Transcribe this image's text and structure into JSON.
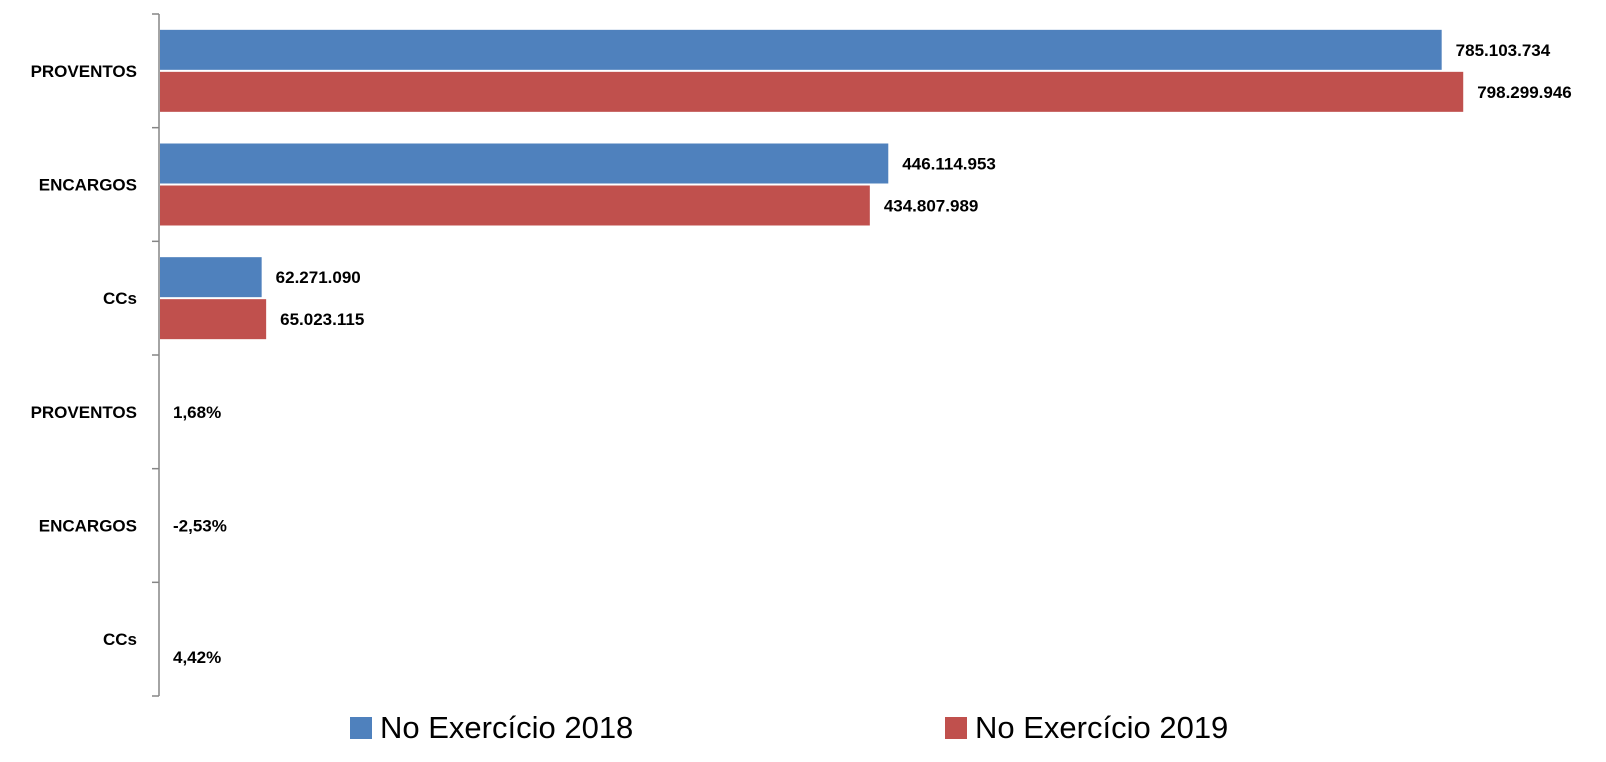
{
  "chart_data": {
    "type": "bar",
    "orientation": "horizontal",
    "categories": [
      "PROVENTOS",
      "ENCARGOS",
      "CCs"
    ],
    "series": [
      {
        "name": "No Exercício 2018",
        "color": "#4f81bd",
        "values": [
          785103734,
          446114953,
          62271090
        ],
        "labels": [
          "785.103.734",
          "446.114.953",
          "62.271.090"
        ]
      },
      {
        "name": "No Exercício 2019",
        "color": "#c0504d",
        "values": [
          798299946,
          434807989,
          65023115
        ],
        "labels": [
          "798.299.946",
          "434.807.989",
          "65.023.115"
        ]
      }
    ],
    "variation": {
      "categories": [
        "PROVENTOS",
        "ENCARGOS",
        "CCs"
      ],
      "labels": [
        "1,68%",
        "-2,53%",
        "4,42%"
      ],
      "values": [
        1.68,
        -2.53,
        4.42
      ]
    },
    "xlim": [
      0,
      800000000
    ],
    "grid": false,
    "legend_position": "bottom"
  }
}
